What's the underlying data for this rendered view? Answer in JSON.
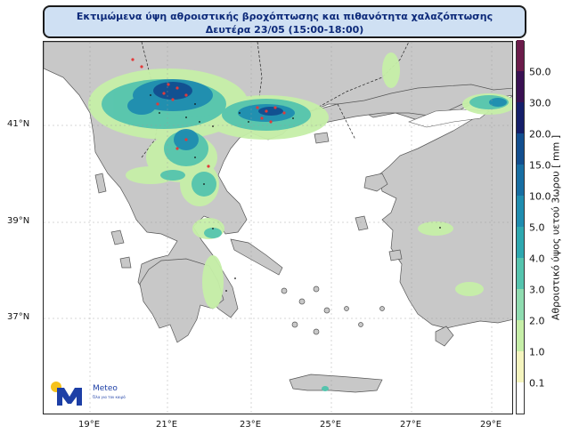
{
  "title": {
    "line1": "Εκτιμώμενα ύψη αθροιστικής βροχόπτωσης και πιθανότητα χαλαζόπτωσης",
    "line2": "Δευτέρα 23/05 (15:00-18:00)"
  },
  "map": {
    "lat_labels": [
      "41°N",
      "39°N",
      "37°N"
    ],
    "lon_labels": [
      "19°E",
      "21°E",
      "23°E",
      "25°E",
      "27°E",
      "29°E"
    ],
    "land_color": "#c8c8c8",
    "sea_color": "#ffffff"
  },
  "colorbar": {
    "title": "Αθροιστικό ύψος υετού 3ωρου [ mm ]",
    "ticks": [
      "0.1",
      "1.0",
      "2.0",
      "3.0",
      "4.0",
      "5.0",
      "10.0",
      "15.0",
      "20.0",
      "30.0",
      "50.0"
    ],
    "colors": [
      "#ffffff",
      "#f5f5bf",
      "#c6efa8",
      "#8fdcb0",
      "#55c4ae",
      "#2ea8b0",
      "#1f8db0",
      "#176ea3",
      "#124e8f",
      "#151f6a",
      "#3a1153",
      "#6b1c4a"
    ]
  },
  "logo": {
    "name": "Meteo",
    "tagline": "Όλα για τον καιρό"
  }
}
